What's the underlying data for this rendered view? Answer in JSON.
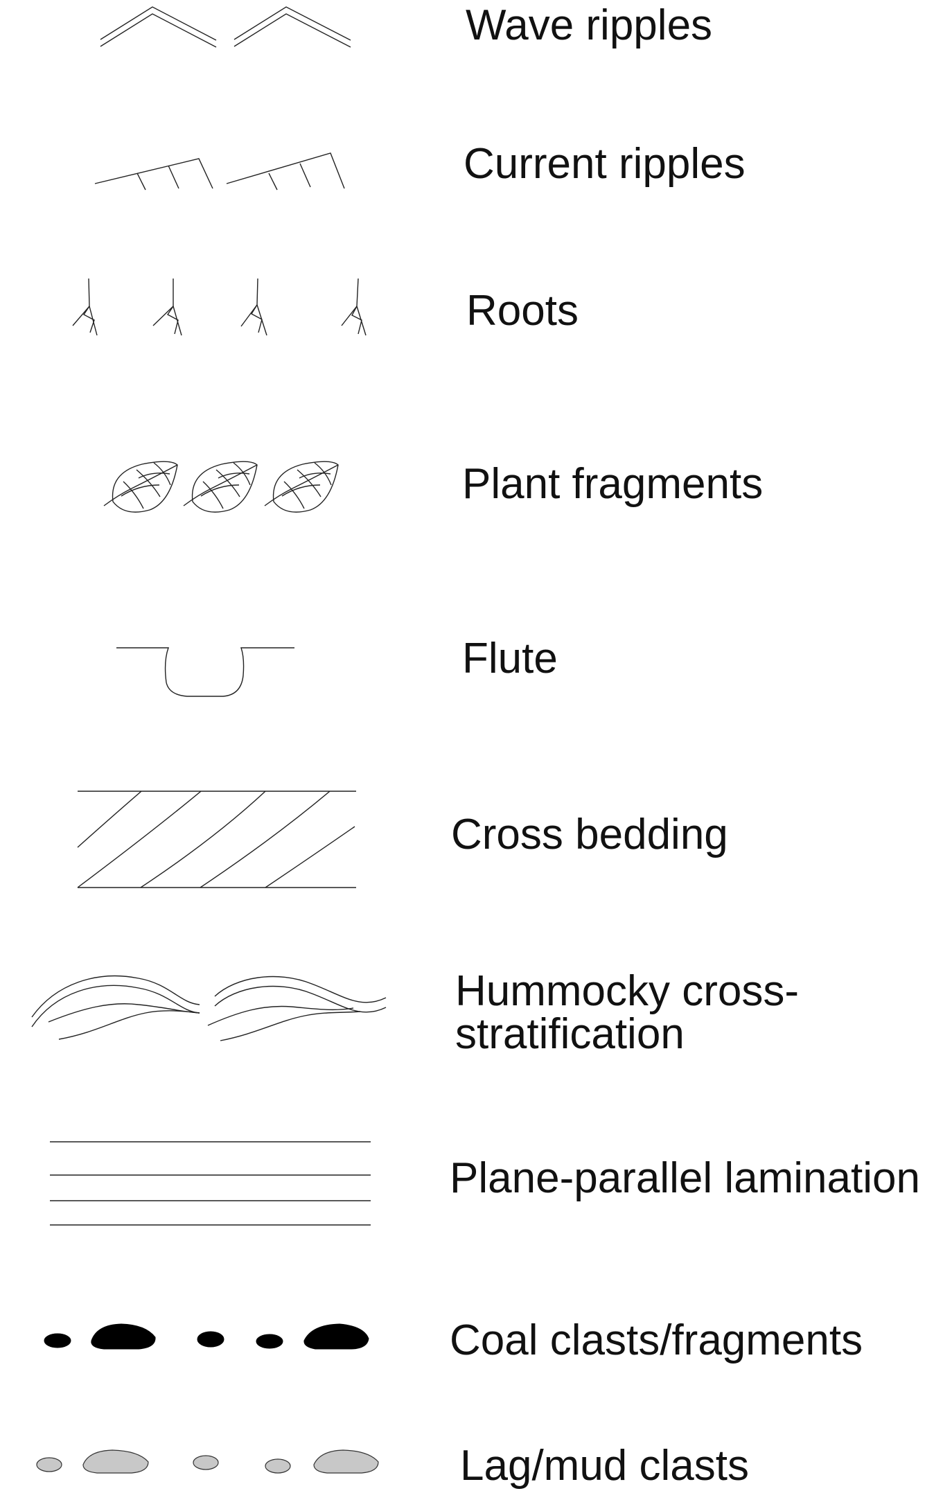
{
  "legend": {
    "items": [
      {
        "label": "Wave ripples",
        "symbol": "wave-ripples-icon"
      },
      {
        "label": "Current ripples",
        "symbol": "current-ripples-icon"
      },
      {
        "label": "Roots",
        "symbol": "roots-icon"
      },
      {
        "label": "Plant fragments",
        "symbol": "plant-fragments-icon"
      },
      {
        "label": "Flute",
        "symbol": "flute-icon"
      },
      {
        "label": "Cross bedding",
        "symbol": "cross-bedding-icon"
      },
      {
        "label": "Hummocky cross-\nstratification",
        "symbol": "hummocky-cross-stratification-icon"
      },
      {
        "label": "Plane-parallel lamination",
        "symbol": "plane-parallel-lamination-icon"
      },
      {
        "label": "Coal clasts/fragments",
        "symbol": "coal-clasts-icon"
      },
      {
        "label": "Lag/mud clasts",
        "symbol": "lag-mud-clasts-icon"
      }
    ],
    "colors": {
      "stroke": "#222222",
      "coal_fill": "#000000",
      "mud_fill": "#c8c8c8"
    }
  }
}
